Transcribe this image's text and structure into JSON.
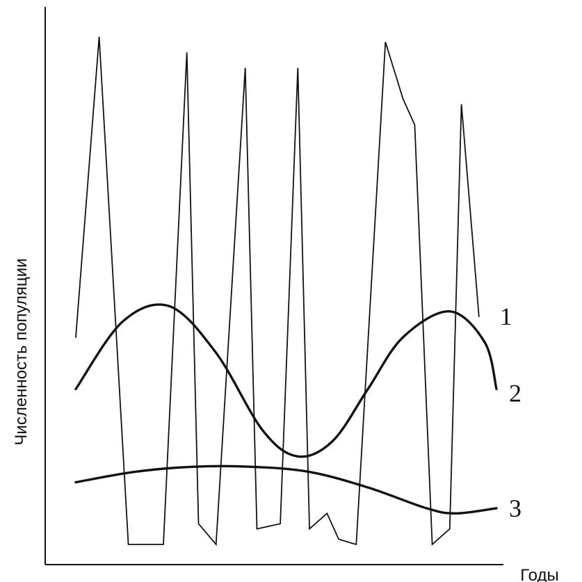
{
  "chart_data": {
    "type": "line",
    "xlabel": "Годы",
    "ylabel": "Численность популяции",
    "xlim": [
      0,
      100
    ],
    "ylim": [
      0,
      100
    ],
    "grid": false,
    "legend": "inline labels at right end of each curve",
    "line_color": "#111111",
    "series": [
      {
        "name": "1",
        "stroke": "thin",
        "points": [
          [
            0,
            40
          ],
          [
            4,
            98
          ],
          [
            9,
            0
          ],
          [
            15,
            0
          ],
          [
            19,
            95
          ],
          [
            21,
            4
          ],
          [
            24,
            0
          ],
          [
            29,
            92
          ],
          [
            31,
            3
          ],
          [
            35,
            4
          ],
          [
            38,
            92
          ],
          [
            40,
            3
          ],
          [
            43,
            6
          ],
          [
            45,
            1
          ],
          [
            48,
            0
          ],
          [
            53,
            97
          ],
          [
            56,
            86
          ],
          [
            58,
            81
          ],
          [
            61,
            0
          ],
          [
            64,
            3
          ],
          [
            66,
            85
          ],
          [
            69,
            44
          ]
        ]
      },
      {
        "name": "2",
        "stroke": "thick",
        "points": [
          [
            0,
            30
          ],
          [
            8,
            43
          ],
          [
            16,
            46
          ],
          [
            24,
            37
          ],
          [
            32,
            22
          ],
          [
            38,
            17
          ],
          [
            44,
            20
          ],
          [
            50,
            30
          ],
          [
            56,
            40
          ],
          [
            64,
            45
          ],
          [
            70,
            39
          ],
          [
            72,
            30
          ]
        ]
      },
      {
        "name": "3",
        "stroke": "thick",
        "points": [
          [
            0,
            12
          ],
          [
            10,
            14
          ],
          [
            20,
            15
          ],
          [
            30,
            15
          ],
          [
            40,
            14
          ],
          [
            50,
            11
          ],
          [
            60,
            7
          ],
          [
            65,
            6
          ],
          [
            72,
            7
          ]
        ]
      }
    ]
  }
}
